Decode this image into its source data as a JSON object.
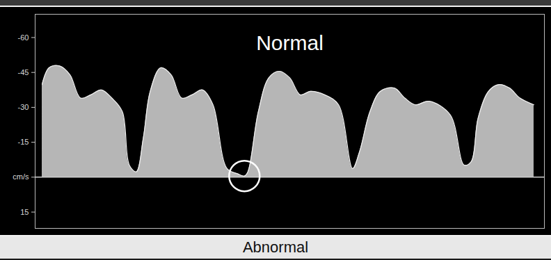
{
  "chart_data": {
    "type": "area",
    "title": "Normal",
    "subtitle": "Abnormal",
    "color": "#d6d6d6",
    "tick_labels": "y",
    "x": [
      65,
      75,
      90,
      105,
      120,
      135,
      150,
      165,
      180,
      190,
      200,
      210,
      220,
      235,
      250,
      265,
      280,
      295,
      310,
      330,
      345,
      355,
      360,
      375,
      390,
      405,
      420,
      435,
      450,
      470,
      490,
      510,
      520,
      535,
      550,
      570,
      585,
      600,
      620,
      650,
      670,
      680,
      690,
      705,
      720,
      735,
      750,
      770
    ],
    "values": [
      -39.8,
      -47,
      -47.8,
      -44,
      -34,
      -35.4,
      -37.5,
      -34,
      -28.2,
      -5.2,
      -2.3,
      -16.7,
      -36.9,
      -47,
      -44,
      -34,
      -35.4,
      -37.5,
      -31.1,
      -3.7,
      -1.5,
      -0.5,
      -2.3,
      -28.2,
      -42.7,
      -45.5,
      -42.7,
      -35.4,
      -36.9,
      -35.4,
      -31.1,
      -3.7,
      -10.9,
      -28.2,
      -36.9,
      -38.3,
      -34,
      -31.1,
      -32.6,
      -26.8,
      -5.2,
      -6.6,
      -25.4,
      -36.9,
      -39.8,
      -38.3,
      -34,
      -31.1
    ],
    "xlim": [
      55,
      785
    ],
    "ylim": [
      -70,
      22
    ],
    "yticks": [
      -60,
      -45,
      -30,
      -15,
      {
        "value": 0,
        "label": "cm/s"
      },
      15
    ]
  }
}
